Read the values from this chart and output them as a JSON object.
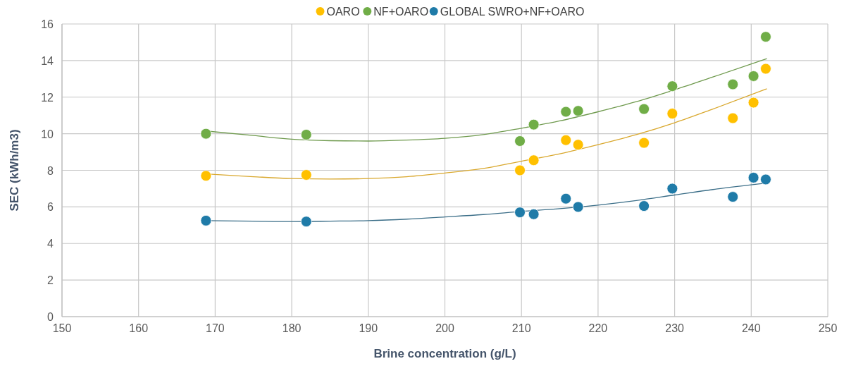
{
  "chart_data": {
    "type": "scatter",
    "xlabel": "Brine concentration (g/L)",
    "ylabel": "SEC (kWh/m3)",
    "xlim": [
      150,
      250
    ],
    "xticks": [
      150,
      160,
      170,
      180,
      190,
      200,
      210,
      220,
      230,
      240,
      250
    ],
    "ylim": [
      0,
      16
    ],
    "yticks": [
      0,
      2,
      4,
      6,
      8,
      10,
      12,
      14,
      16
    ],
    "grid": true,
    "legend": "top",
    "marker": "circle",
    "x": [
      168.8,
      181.9,
      209.8,
      211.6,
      215.8,
      217.4,
      226,
      229.7,
      237.6,
      240.3,
      241.9
    ],
    "series": [
      {
        "name": "OARO",
        "color": "#ffc000",
        "values": [
          7.7,
          7.75,
          8.0,
          8.55,
          9.65,
          9.4,
          9.5,
          11.1,
          10.85,
          11.7,
          13.55
        ]
      },
      {
        "name": "NF+OARO",
        "color": "#70ad47",
        "values": [
          10.0,
          9.95,
          9.6,
          10.5,
          11.2,
          11.25,
          11.35,
          12.6,
          12.7,
          13.15,
          15.3
        ]
      },
      {
        "name": "GLOBAL SWRO+NF+OARO",
        "color": "#1f7ba8",
        "values": [
          5.25,
          5.2,
          5.7,
          5.6,
          6.45,
          6.0,
          6.05,
          7.0,
          6.55,
          7.6,
          7.5
        ]
      },
      {
        "type": "line",
        "marker": "none",
        "color": "#d9a82e",
        "x": [
          168.8,
          175,
          180,
          185,
          190,
          195,
          200,
          205,
          210,
          215,
          220,
          225,
          230,
          235,
          242
        ],
        "values": [
          7.8,
          7.65,
          7.55,
          7.52,
          7.55,
          7.65,
          7.85,
          8.1,
          8.5,
          8.9,
          9.4,
          9.95,
          10.6,
          11.35,
          12.45
        ]
      },
      {
        "type": "line",
        "marker": "none",
        "color": "#6f9a4e",
        "x": [
          168.8,
          175,
          180,
          185,
          190,
          195,
          200,
          205,
          210,
          215,
          220,
          225,
          230,
          235,
          242
        ],
        "values": [
          10.15,
          9.9,
          9.7,
          9.62,
          9.6,
          9.65,
          9.75,
          9.95,
          10.3,
          10.7,
          11.2,
          11.75,
          12.4,
          13.1,
          14.1
        ]
      },
      {
        "type": "line",
        "marker": "none",
        "color": "#3b6e88",
        "x": [
          168.8,
          175,
          180,
          185,
          190,
          195,
          200,
          205,
          210,
          215,
          220,
          225,
          230,
          235,
          242
        ],
        "values": [
          5.25,
          5.22,
          5.2,
          5.22,
          5.25,
          5.33,
          5.45,
          5.58,
          5.75,
          5.9,
          6.1,
          6.35,
          6.65,
          6.95,
          7.3
        ]
      }
    ]
  }
}
